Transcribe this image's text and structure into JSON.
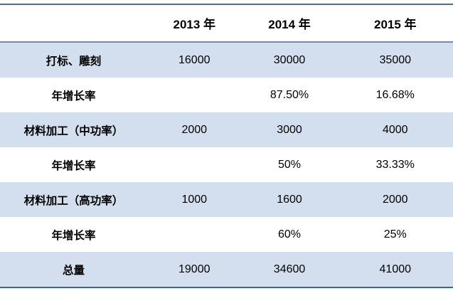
{
  "chart_data": {
    "type": "table",
    "title": "",
    "columns": [
      "",
      "2013 年",
      "2014 年",
      "2015 年"
    ],
    "rows": [
      [
        "打标、雕刻",
        "16000",
        "30000",
        "35000"
      ],
      [
        "年增长率",
        "",
        "87.50%",
        "16.68%"
      ],
      [
        "材料加工（中功率）",
        "2000",
        "3000",
        "4000"
      ],
      [
        "年增长率",
        "",
        "50%",
        "33.33%"
      ],
      [
        "材料加工（高功率）",
        "1000",
        "1600",
        "2000"
      ],
      [
        "年增长率",
        "",
        "60%",
        "25%"
      ],
      [
        "总量",
        "19000",
        "34600",
        "41000"
      ]
    ],
    "layout_hints": {
      "shaded_rows": [
        0,
        2,
        4,
        6
      ],
      "header_background": "#ffffff",
      "value_alignment": "center"
    }
  },
  "colors": {
    "shaded_row_bg": "#d3dfee",
    "top_border": "#4e7090",
    "header_underline": "#7289b2",
    "bottom_border": "#3f6480",
    "text": "#000000"
  }
}
